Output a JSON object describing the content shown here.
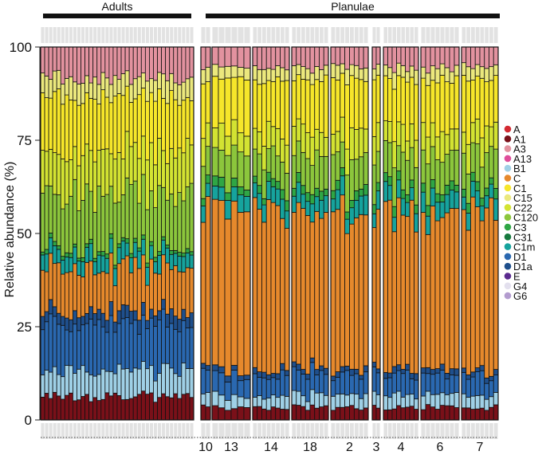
{
  "chart_data": {
    "type": "stacked-bar",
    "ylabel": "Relative abundance (%)",
    "ylim": [
      0,
      100
    ],
    "yticks": [
      0,
      25,
      50,
      75,
      100
    ],
    "groups": [
      {
        "name": "Adults",
        "bars": 38
      },
      {
        "name": "Planulae",
        "bars": 72
      }
    ],
    "colonies": [
      {
        "label": "10",
        "bars": 2
      },
      {
        "label": "13",
        "bars": 6
      },
      {
        "label": "14",
        "bars": 8
      },
      {
        "label": "18",
        "bars": 8
      },
      {
        "label": "2",
        "bars": 8
      },
      {
        "label": "3",
        "bars": 2
      },
      {
        "label": "4",
        "bars": 8
      },
      {
        "label": "6",
        "bars": 8
      },
      {
        "label": "7",
        "bars": 8
      }
    ],
    "legend": [
      {
        "name": "A",
        "color": "#d42a32"
      },
      {
        "name": "A1",
        "color": "#7a1019"
      },
      {
        "name": "A3",
        "color": "#e2929f"
      },
      {
        "name": "A13",
        "color": "#df4d9a"
      },
      {
        "name": "B1",
        "color": "#9fd0e6"
      },
      {
        "name": "C",
        "color": "#e6892c"
      },
      {
        "name": "C1",
        "color": "#f6e62a"
      },
      {
        "name": "C15",
        "color": "#ebe87d"
      },
      {
        "name": "C22",
        "color": "#d3e332"
      },
      {
        "name": "C120",
        "color": "#8cc63c"
      },
      {
        "name": "C3",
        "color": "#2fa645"
      },
      {
        "name": "C31",
        "color": "#167a3e"
      },
      {
        "name": "C1m",
        "color": "#16a39d"
      },
      {
        "name": "D1",
        "color": "#2a68b0"
      },
      {
        "name": "D1a",
        "color": "#1f4f8c"
      },
      {
        "name": "E",
        "color": "#5a2b8f"
      },
      {
        "name": "G4",
        "color": "#e3e0ee"
      },
      {
        "name": "G6",
        "color": "#b39ccf"
      }
    ],
    "adult_profile_mean": {
      "A1": 6,
      "B1": 7,
      "D1": 12,
      "C": 12,
      "C1m": 4,
      "C120": 14,
      "C22": 11,
      "C1": 14,
      "C15": 5,
      "C3": 1,
      "A13": 0,
      "A3": 8
    },
    "planulae_profile_mean": {
      "A1": 3,
      "B1": 3,
      "D1": 5,
      "C": 38,
      "C1m": 4,
      "C120": 8,
      "C22": 6,
      "C1": 13,
      "C15": 3,
      "C3": 2,
      "A3": 5
    }
  }
}
